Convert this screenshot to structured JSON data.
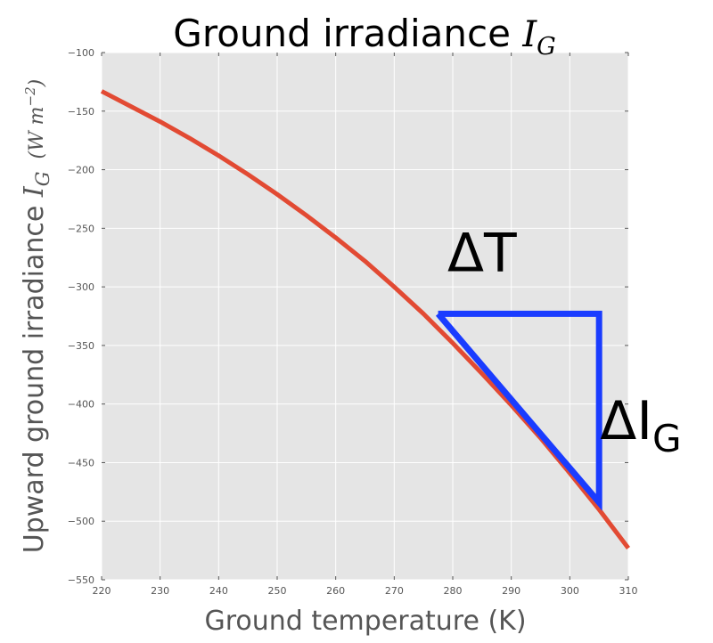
{
  "chart_data": {
    "type": "line",
    "title": {
      "text": "Ground irradiance ",
      "symbol": "I",
      "subscript": "G"
    },
    "xlabel": "Ground temperature (K)",
    "ylabel": {
      "text": "Upward ground irradiance ",
      "symbol": "I",
      "subscript": "G",
      "units": "(W m",
      "units_exp": "−2",
      "units_close": ")"
    },
    "xlim": [
      220,
      310
    ],
    "ylim": [
      -550,
      -100
    ],
    "xticks": [
      220,
      230,
      240,
      250,
      260,
      270,
      280,
      290,
      300,
      310
    ],
    "xtick_labels": [
      "220",
      "230",
      "240",
      "250",
      "260",
      "270",
      "280",
      "290",
      "300",
      "310"
    ],
    "yticks": [
      -100,
      -150,
      -200,
      -250,
      -300,
      -350,
      -400,
      -450,
      -500,
      -550
    ],
    "ytick_labels": [
      "−100",
      "−150",
      "−200",
      "−250",
      "−300",
      "−350",
      "−400",
      "−450",
      "−500",
      "−550"
    ],
    "grid": true,
    "series": [
      {
        "color": "#e24a33",
        "x": [
          220,
          225,
          230,
          235,
          240,
          245,
          250,
          255,
          260,
          265,
          270,
          275,
          280,
          285,
          290,
          295,
          300,
          305,
          310
        ],
        "y": [
          -133,
          -146,
          -159,
          -173,
          -188,
          -204,
          -221,
          -239,
          -258,
          -278,
          -300,
          -323,
          -348,
          -374,
          -401,
          -429,
          -459,
          -490,
          -523
        ]
      }
    ],
    "annotations": {
      "triangle": {
        "color": "#1a3cff",
        "points": [
          [
            277.5,
            -323
          ],
          [
            305,
            -323
          ],
          [
            305,
            -484
          ]
        ]
      },
      "delta_t": {
        "text": "ΔT",
        "x": 285,
        "y": -270
      },
      "delta_ig": {
        "text": "ΔI",
        "subscript": "G",
        "x": 307,
        "y": -413
      }
    }
  }
}
